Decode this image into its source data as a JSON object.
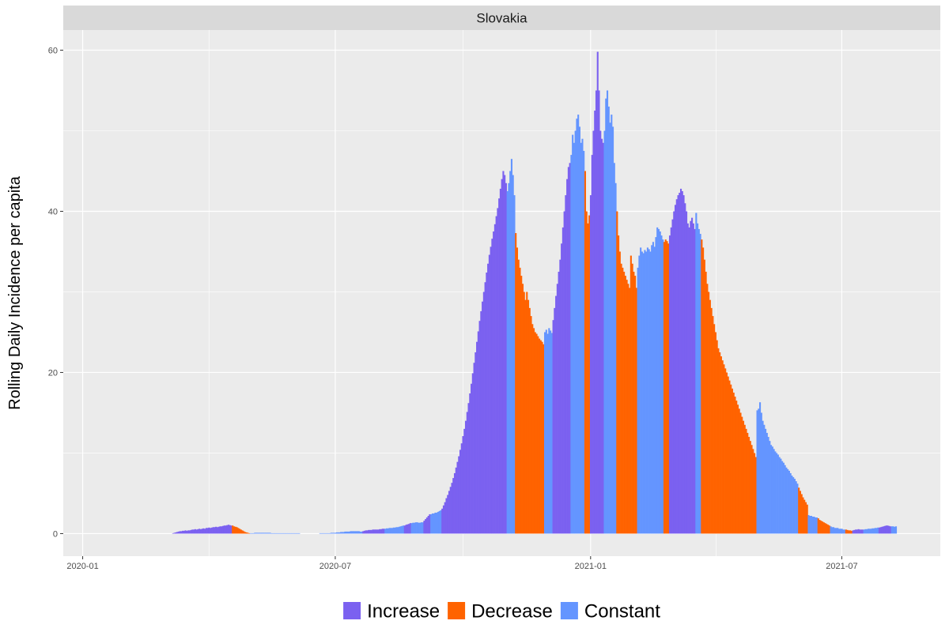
{
  "chart_data": {
    "type": "bar",
    "facet_title": "Slovakia",
    "xlabel": "",
    "ylabel": "Rolling Daily Incidence per capita",
    "x_ticks": [
      "2020-01-01",
      "2020-07-01",
      "2021-01-01",
      "2021-07-01"
    ],
    "x_tick_labels": [
      "2020-01",
      "2020-07",
      "2021-01",
      "2021-07"
    ],
    "xlim": [
      "2019-12-18",
      "2021-09-10"
    ],
    "ylim": [
      -2.8,
      62.5
    ],
    "y_ticks": [
      0,
      20,
      40,
      60
    ],
    "grid": true,
    "legend_position": "bottom",
    "legend": [
      {
        "key": "increase",
        "label": "Increase",
        "color": "#7B61F0"
      },
      {
        "key": "decrease",
        "label": "Decrease",
        "color": "#FF6300"
      },
      {
        "key": "constant",
        "label": "Constant",
        "color": "#6495FF"
      }
    ],
    "series": [
      {
        "start": "2020-03-06",
        "end": "2020-04-17",
        "trend": "increase",
        "values": [
          0.05,
          0.1,
          0.15,
          0.2,
          0.25,
          0.3,
          0.3,
          0.35,
          0.35,
          0.4,
          0.35,
          0.4,
          0.4,
          0.45,
          0.5,
          0.5,
          0.55,
          0.5,
          0.55,
          0.6,
          0.55,
          0.6,
          0.65,
          0.6,
          0.7,
          0.7,
          0.75,
          0.7,
          0.75,
          0.8,
          0.8,
          0.85,
          0.8,
          0.85,
          0.9,
          0.9,
          0.95,
          1.0,
          1.0,
          1.05,
          1.1,
          1.05,
          1.0
        ]
      },
      {
        "start": "2020-04-18",
        "end": "2020-04-30",
        "trend": "decrease",
        "values": [
          1.0,
          0.9,
          0.85,
          0.8,
          0.7,
          0.6,
          0.5,
          0.4,
          0.3,
          0.2,
          0.15,
          0.1,
          0.05
        ]
      },
      {
        "start": "2020-05-01",
        "end": "2020-06-05",
        "trend": "constant",
        "values": [
          0.05,
          0.05,
          0.05,
          0.1,
          0.1,
          0.1,
          0.1,
          0.1,
          0.1,
          0.1,
          0.1,
          0.1,
          0.1,
          0.1,
          0.1,
          0.05,
          0.05,
          0.05,
          0.05,
          0.05,
          0.05,
          0.05,
          0.05,
          0.05,
          0.05,
          0.05,
          0.05,
          0.05,
          0.05,
          0.05,
          0.05,
          0.05,
          0.05,
          0.05,
          0.05,
          0.05
        ]
      },
      {
        "start": "2020-06-20",
        "end": "2020-07-20",
        "trend": "constant",
        "values": [
          0.05,
          0.05,
          0.05,
          0.05,
          0.05,
          0.05,
          0.05,
          0.05,
          0.1,
          0.1,
          0.1,
          0.1,
          0.15,
          0.15,
          0.15,
          0.2,
          0.2,
          0.2,
          0.25,
          0.25,
          0.25,
          0.25,
          0.3,
          0.3,
          0.3,
          0.3,
          0.3,
          0.3,
          0.3,
          0.25,
          0.25
        ]
      },
      {
        "start": "2020-07-21",
        "end": "2020-08-05",
        "trend": "increase",
        "values": [
          0.3,
          0.35,
          0.4,
          0.4,
          0.45,
          0.45,
          0.45,
          0.5,
          0.5,
          0.5,
          0.5,
          0.5,
          0.55,
          0.55,
          0.6,
          0.6
        ]
      },
      {
        "start": "2020-08-06",
        "end": "2020-08-19",
        "trend": "constant",
        "values": [
          0.6,
          0.65,
          0.65,
          0.7,
          0.7,
          0.7,
          0.75,
          0.75,
          0.8,
          0.8,
          0.85,
          0.9,
          0.95,
          1.0
        ]
      },
      {
        "start": "2020-08-20",
        "end": "2020-08-24",
        "trend": "increase",
        "values": [
          1.0,
          1.1,
          1.15,
          1.2,
          1.3
        ]
      },
      {
        "start": "2020-08-25",
        "end": "2020-09-02",
        "trend": "constant",
        "values": [
          1.3,
          1.35,
          1.35,
          1.4,
          1.4,
          1.35,
          1.35,
          1.4,
          1.4
        ]
      },
      {
        "start": "2020-09-03",
        "end": "2020-09-07",
        "trend": "increase",
        "values": [
          1.6,
          1.8,
          2.0,
          2.2,
          2.4
        ]
      },
      {
        "start": "2020-09-08",
        "end": "2020-09-15",
        "trend": "constant",
        "values": [
          2.4,
          2.5,
          2.5,
          2.6,
          2.6,
          2.7,
          2.8,
          2.9
        ]
      },
      {
        "start": "2020-09-16",
        "end": "2020-11-01",
        "trend": "increase",
        "values": [
          3.1,
          3.5,
          3.9,
          4.4,
          4.8,
          5.3,
          5.8,
          6.3,
          6.9,
          7.5,
          8.2,
          8.9,
          9.6,
          10.4,
          11.2,
          12.1,
          13.0,
          14.0,
          15.1,
          16.2,
          17.4,
          18.6,
          19.9,
          21.2,
          22.5,
          23.8,
          25.1,
          26.4,
          27.6,
          28.8,
          30.0,
          31.2,
          32.4,
          33.5,
          34.6,
          35.6,
          36.6,
          37.5,
          38.4,
          39.4,
          40.4,
          41.6,
          42.8,
          44.0,
          45.0,
          44.5,
          43.5
        ]
      },
      {
        "start": "2020-11-02",
        "end": "2020-11-07",
        "trend": "constant",
        "values": [
          42.5,
          43.5,
          45.0,
          46.5,
          44.5,
          42.0
        ]
      },
      {
        "start": "2020-11-08",
        "end": "2020-11-28",
        "trend": "decrease",
        "values": [
          37.3,
          35.5,
          34.0,
          33.0,
          32.0,
          31.0,
          30.0,
          29.0,
          30.0,
          29.0,
          28.0,
          27.0,
          26.0,
          25.5,
          25.0,
          24.8,
          24.5,
          24.2,
          24.0,
          23.8,
          23.5
        ]
      },
      {
        "start": "2020-11-29",
        "end": "2020-12-04",
        "trend": "constant",
        "values": [
          25.0,
          25.3,
          24.8,
          25.5,
          25.2,
          24.9
        ]
      },
      {
        "start": "2020-12-05",
        "end": "2020-12-17",
        "trend": "increase",
        "values": [
          26.5,
          28.0,
          29.5,
          31.0,
          32.5,
          34.0,
          36.0,
          38.0,
          40.0,
          42.0,
          44.0,
          45.5,
          46.0
        ]
      },
      {
        "start": "2020-12-18",
        "end": "2020-12-27",
        "trend": "constant",
        "values": [
          47.0,
          49.5,
          48.5,
          50.0,
          51.5,
          52.0,
          50.5,
          48.5,
          49.0,
          47.5
        ]
      },
      {
        "start": "2020-12-28",
        "end": "2020-12-31",
        "trend": "decrease",
        "values": [
          45.0,
          40.0,
          38.5,
          39.5
        ]
      },
      {
        "start": "2021-01-01",
        "end": "2021-01-10",
        "trend": "increase",
        "values": [
          42.0,
          47.0,
          50.0,
          52.5,
          55.0,
          59.8,
          55.0,
          50.0,
          49.0,
          48.5
        ]
      },
      {
        "start": "2021-01-11",
        "end": "2021-01-19",
        "trend": "constant",
        "values": [
          50.0,
          54.0,
          55.0,
          53.0,
          51.0,
          52.0,
          50.5,
          46.0,
          43.5
        ]
      },
      {
        "start": "2021-01-20",
        "end": "2021-02-03",
        "trend": "decrease",
        "values": [
          40.0,
          37.0,
          35.0,
          33.5,
          33.0,
          32.5,
          32.0,
          31.5,
          31.0,
          30.5,
          34.5,
          33.5,
          32.5,
          32.0,
          30.5
        ]
      },
      {
        "start": "2021-02-04",
        "end": "2021-02-22",
        "trend": "constant",
        "values": [
          33.0,
          34.5,
          35.5,
          35.0,
          34.8,
          35.2,
          35.0,
          35.5,
          35.3,
          35.0,
          35.8,
          36.2,
          35.6,
          36.8,
          38.0,
          37.8,
          37.5,
          37.0,
          36.5
        ]
      },
      {
        "start": "2021-02-23",
        "end": "2021-02-26",
        "trend": "decrease",
        "values": [
          36.2,
          36.5,
          36.3,
          36.0
        ]
      },
      {
        "start": "2021-02-27",
        "end": "2021-03-17",
        "trend": "increase",
        "values": [
          37.0,
          38.0,
          39.0,
          40.0,
          40.8,
          41.5,
          42.0,
          42.3,
          42.8,
          42.5,
          42.0,
          41.0,
          40.0,
          38.5,
          38.0,
          38.8,
          39.2,
          38.5,
          37.8
        ]
      },
      {
        "start": "2021-03-18",
        "end": "2021-03-21",
        "trend": "constant",
        "values": [
          39.8,
          38.5,
          37.8,
          37.2
        ]
      },
      {
        "start": "2021-03-22",
        "end": "2021-04-30",
        "trend": "decrease",
        "values": [
          36.5,
          35.5,
          34.0,
          32.5,
          31.0,
          30.0,
          29.0,
          28.0,
          27.0,
          26.0,
          25.0,
          24.0,
          23.0,
          22.5,
          22.0,
          21.5,
          21.0,
          20.5,
          20.0,
          19.5,
          19.0,
          18.5,
          18.0,
          17.5,
          17.0,
          16.5,
          16.0,
          15.5,
          15.0,
          14.5,
          14.0,
          13.5,
          13.0,
          12.5,
          12.0,
          11.5,
          11.0,
          10.5,
          10.0,
          9.5
        ]
      },
      {
        "start": "2021-05-01",
        "end": "2021-05-30",
        "trend": "constant",
        "values": [
          15.3,
          15.5,
          16.3,
          15.0,
          14.0,
          13.5,
          13.0,
          12.5,
          12.0,
          11.5,
          11.0,
          10.8,
          10.5,
          10.2,
          10.0,
          9.8,
          9.5,
          9.3,
          9.0,
          8.8,
          8.5,
          8.2,
          8.0,
          7.8,
          7.5,
          7.2,
          7.0,
          6.8,
          6.5,
          6.2
        ]
      },
      {
        "start": "2021-05-31",
        "end": "2021-06-06",
        "trend": "decrease",
        "values": [
          5.7,
          5.3,
          4.9,
          4.5,
          4.2,
          3.9,
          3.6
        ]
      },
      {
        "start": "2021-06-07",
        "end": "2021-06-13",
        "trend": "constant",
        "values": [
          2.3,
          2.2,
          2.2,
          2.1,
          2.1,
          2.0,
          2.0
        ]
      },
      {
        "start": "2021-06-14",
        "end": "2021-06-22",
        "trend": "decrease",
        "values": [
          1.9,
          1.7,
          1.6,
          1.5,
          1.4,
          1.3,
          1.2,
          1.1,
          1.0
        ]
      },
      {
        "start": "2021-06-23",
        "end": "2021-07-03",
        "trend": "constant",
        "values": [
          0.9,
          0.8,
          0.8,
          0.7,
          0.7,
          0.7,
          0.6,
          0.6,
          0.6,
          0.5,
          0.5
        ]
      },
      {
        "start": "2021-07-04",
        "end": "2021-07-08",
        "trend": "decrease",
        "values": [
          0.5,
          0.45,
          0.4,
          0.4,
          0.35
        ]
      },
      {
        "start": "2021-07-09",
        "end": "2021-07-16",
        "trend": "increase",
        "values": [
          0.4,
          0.45,
          0.5,
          0.5,
          0.55,
          0.5,
          0.5,
          0.5
        ]
      },
      {
        "start": "2021-07-17",
        "end": "2021-07-27",
        "trend": "constant",
        "values": [
          0.5,
          0.55,
          0.55,
          0.6,
          0.6,
          0.6,
          0.65,
          0.65,
          0.7,
          0.7,
          0.75
        ]
      },
      {
        "start": "2021-07-28",
        "end": "2021-08-05",
        "trend": "increase",
        "values": [
          0.75,
          0.8,
          0.85,
          0.9,
          0.95,
          1.0,
          1.0,
          0.95,
          0.9
        ]
      },
      {
        "start": "2021-08-06",
        "end": "2021-08-09",
        "trend": "constant",
        "values": [
          0.9,
          0.9,
          0.85,
          0.9
        ]
      }
    ]
  }
}
